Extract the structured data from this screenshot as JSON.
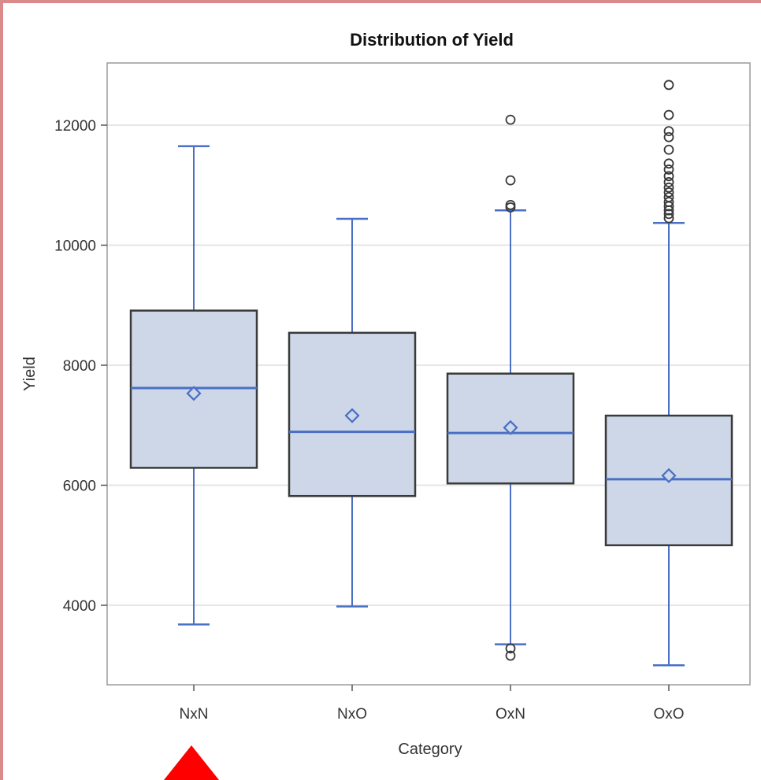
{
  "chart_data": {
    "type": "boxplot",
    "title": "Distribution of Yield",
    "xlabel": "Category",
    "ylabel": "Yield",
    "ylim": [
      2800,
      13000
    ],
    "yticks": [
      4000,
      6000,
      8000,
      10000,
      12000
    ],
    "grid": "horizontal",
    "colors": {
      "box_fill": "#cdd7e8",
      "box_border": "#3a3a3a",
      "whisker": "#4a6fc4",
      "median": "#4a6fc4",
      "mean": "#4a6fc4",
      "outlier": "#3a3a3a",
      "grid": "#e6e6e6",
      "frame": "#9a9a9a"
    },
    "categories": [
      "NxN",
      "NxO",
      "OxN",
      "OxO"
    ],
    "boxes": [
      {
        "category": "NxN",
        "whisker_low": 3680,
        "q1": 6290,
        "median": 7620,
        "q3": 8910,
        "whisker_high": 11650,
        "mean": 7530,
        "outliers": []
      },
      {
        "category": "NxO",
        "whisker_low": 3980,
        "q1": 5820,
        "median": 6890,
        "q3": 8540,
        "whisker_high": 10440,
        "mean": 7160,
        "outliers": []
      },
      {
        "category": "OxN",
        "whisker_low": 3350,
        "q1": 6030,
        "median": 6870,
        "q3": 7860,
        "whisker_high": 10580,
        "mean": 6960,
        "outliers": [
          3160,
          3280,
          10630,
          10670,
          11080,
          12090
        ]
      },
      {
        "category": "OxO",
        "whisker_low": 3000,
        "q1": 5000,
        "median": 6100,
        "q3": 7160,
        "whisker_high": 10370,
        "mean": 6160,
        "outliers": [
          10450,
          10520,
          10580,
          10650,
          10720,
          10800,
          10880,
          10960,
          11050,
          11150,
          11260,
          11360,
          11590,
          11800,
          11900,
          12170,
          12670
        ]
      }
    ]
  }
}
